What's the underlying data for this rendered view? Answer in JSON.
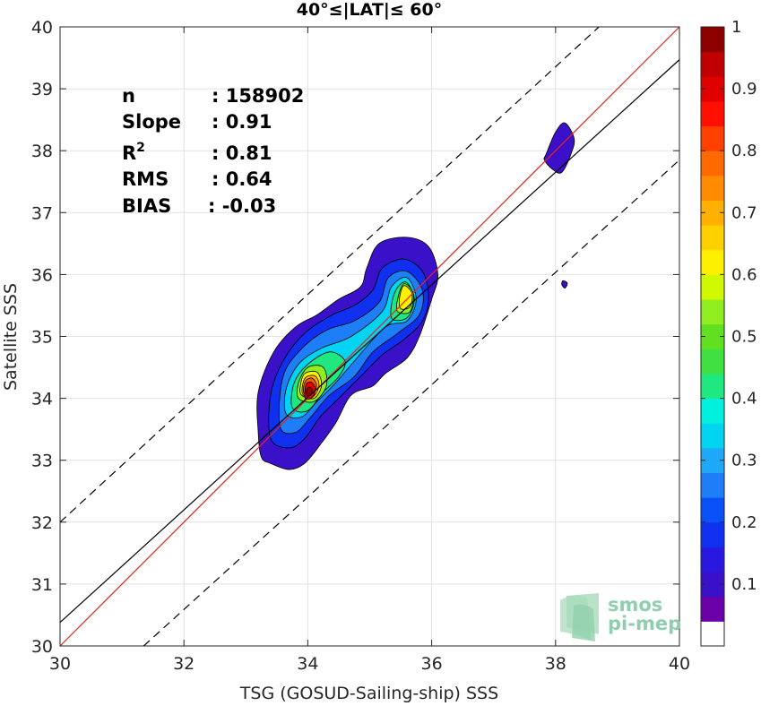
{
  "chart_data": {
    "type": "heatmap",
    "title": "40°≤|LAT|≤ 60°",
    "xlabel": "TSG (GOSUD-Sailing-ship) SSS",
    "ylabel": "Satellite SSS",
    "xlim": [
      30,
      40
    ],
    "ylim": [
      30,
      40
    ],
    "xticks": [
      "30",
      "32",
      "34",
      "36",
      "38",
      "40"
    ],
    "yticks": [
      "30",
      "31",
      "32",
      "33",
      "34",
      "35",
      "36",
      "37",
      "38",
      "39",
      "40"
    ],
    "grid": true,
    "stats": [
      {
        "label": "n",
        "value": ": 158902"
      },
      {
        "label": "Slope",
        "value": ": 0.91"
      },
      {
        "label": "R",
        "sup": "2",
        "value": ": 0.81"
      },
      {
        "label": "RMS",
        "value": ": 0.64"
      },
      {
        "label": "BIAS",
        "value": ": -0.03"
      }
    ],
    "lines": [
      {
        "role": "1:1",
        "color": "#e8231f",
        "dashed": false,
        "points": [
          [
            30,
            30
          ],
          [
            40,
            40
          ]
        ]
      },
      {
        "role": "fit",
        "color": "#000000",
        "dashed": false,
        "points": [
          [
            30,
            30.38
          ],
          [
            40,
            39.47
          ]
        ]
      },
      {
        "role": "upper",
        "color": "#000000",
        "dashed": true,
        "points": [
          [
            30,
            32
          ],
          [
            38.7,
            40
          ]
        ]
      },
      {
        "role": "lower",
        "color": "#000000",
        "dashed": true,
        "points": [
          [
            31.35,
            30
          ],
          [
            40,
            37.85
          ]
        ]
      }
    ],
    "contours": [
      {
        "level": 0.02,
        "color": "#3a10c8",
        "path": [
          [
            33.25,
            33.05
          ],
          [
            33.4,
            32.95
          ],
          [
            33.7,
            32.85
          ],
          [
            33.95,
            32.95
          ],
          [
            34.2,
            33.25
          ],
          [
            34.45,
            33.6
          ],
          [
            34.7,
            34.05
          ],
          [
            35.05,
            34.2
          ],
          [
            35.25,
            34.4
          ],
          [
            35.6,
            34.65
          ],
          [
            35.8,
            35.0
          ],
          [
            36.0,
            35.6
          ],
          [
            36.1,
            36.0
          ],
          [
            35.95,
            36.45
          ],
          [
            35.6,
            36.6
          ],
          [
            35.15,
            36.5
          ],
          [
            34.95,
            36.1
          ],
          [
            34.85,
            35.8
          ],
          [
            34.5,
            35.6
          ],
          [
            34.15,
            35.35
          ],
          [
            33.8,
            35.15
          ],
          [
            33.45,
            34.75
          ],
          [
            33.2,
            34.1
          ],
          [
            33.2,
            33.45
          ]
        ]
      },
      {
        "level": 0.02,
        "color": "#3a10c8",
        "path": [
          [
            37.85,
            37.95
          ],
          [
            38.0,
            38.3
          ],
          [
            38.15,
            38.45
          ],
          [
            38.3,
            38.2
          ],
          [
            38.25,
            37.95
          ],
          [
            38.1,
            37.65
          ],
          [
            37.95,
            37.7
          ],
          [
            37.82,
            37.85
          ]
        ]
      },
      {
        "level": 0.02,
        "color": "#3a10c8",
        "path": [
          [
            38.12,
            35.9
          ],
          [
            38.19,
            35.86
          ],
          [
            38.15,
            35.78
          ],
          [
            38.1,
            35.84
          ]
        ]
      },
      {
        "level": 0.15,
        "color": "#1030f0",
        "path": [
          [
            33.4,
            33.35
          ],
          [
            33.7,
            33.2
          ],
          [
            33.95,
            33.35
          ],
          [
            34.2,
            33.7
          ],
          [
            34.5,
            34.0
          ],
          [
            34.85,
            34.35
          ],
          [
            35.2,
            34.7
          ],
          [
            35.55,
            34.95
          ],
          [
            35.85,
            35.25
          ],
          [
            35.95,
            35.65
          ],
          [
            35.85,
            36.05
          ],
          [
            35.55,
            36.25
          ],
          [
            35.2,
            36.1
          ],
          [
            35.05,
            35.75
          ],
          [
            34.75,
            35.5
          ],
          [
            34.4,
            35.35
          ],
          [
            33.95,
            35.05
          ],
          [
            33.6,
            34.6
          ],
          [
            33.4,
            34.05
          ]
        ]
      },
      {
        "level": 0.25,
        "color": "#1e7ef8",
        "path": [
          [
            33.55,
            33.55
          ],
          [
            33.8,
            33.45
          ],
          [
            34.05,
            33.7
          ],
          [
            34.35,
            34.05
          ],
          [
            34.75,
            34.35
          ],
          [
            35.05,
            34.75
          ],
          [
            35.45,
            35.05
          ],
          [
            35.8,
            35.35
          ],
          [
            35.85,
            35.75
          ],
          [
            35.6,
            36.05
          ],
          [
            35.3,
            35.95
          ],
          [
            35.15,
            35.55
          ],
          [
            34.75,
            35.25
          ],
          [
            34.3,
            35.1
          ],
          [
            33.9,
            34.8
          ],
          [
            33.6,
            34.35
          ]
        ]
      },
      {
        "level": 0.35,
        "color": "#00d4f0",
        "path": [
          [
            33.65,
            33.75
          ],
          [
            33.9,
            33.7
          ],
          [
            34.15,
            33.95
          ],
          [
            34.45,
            34.25
          ],
          [
            34.75,
            34.6
          ],
          [
            35.25,
            35.15
          ],
          [
            35.6,
            35.25
          ],
          [
            35.75,
            35.6
          ],
          [
            35.6,
            35.95
          ],
          [
            35.35,
            35.8
          ],
          [
            35.2,
            35.4
          ],
          [
            34.7,
            35.0
          ],
          [
            34.2,
            34.8
          ],
          [
            33.85,
            34.55
          ],
          [
            33.65,
            34.15
          ]
        ]
      },
      {
        "level": 0.45,
        "color": "#20e880",
        "path": [
          [
            33.75,
            33.85
          ],
          [
            34.0,
            33.8
          ],
          [
            34.25,
            34.1
          ],
          [
            34.5,
            34.35
          ],
          [
            34.6,
            34.6
          ],
          [
            34.35,
            34.75
          ],
          [
            34.0,
            34.55
          ],
          [
            33.78,
            34.25
          ]
        ]
      },
      {
        "level": 0.45,
        "color": "#20e880",
        "path": [
          [
            35.35,
            35.3
          ],
          [
            35.6,
            35.3
          ],
          [
            35.72,
            35.6
          ],
          [
            35.58,
            35.88
          ],
          [
            35.4,
            35.7
          ]
        ]
      },
      {
        "level": 0.55,
        "color": "#90ee20",
        "path": [
          [
            33.85,
            34.0
          ],
          [
            34.1,
            33.95
          ],
          [
            34.3,
            34.2
          ],
          [
            34.25,
            34.5
          ],
          [
            34.0,
            34.5
          ],
          [
            33.85,
            34.25
          ]
        ]
      },
      {
        "level": 0.55,
        "color": "#90ee20",
        "path": [
          [
            35.45,
            35.4
          ],
          [
            35.65,
            35.4
          ],
          [
            35.7,
            35.7
          ],
          [
            35.55,
            35.85
          ],
          [
            35.45,
            35.6
          ]
        ]
      },
      {
        "level": 0.65,
        "color": "#fff000",
        "path": [
          [
            33.9,
            34.05
          ],
          [
            34.1,
            34.0
          ],
          [
            34.22,
            34.2
          ],
          [
            34.15,
            34.42
          ],
          [
            33.95,
            34.4
          ],
          [
            33.88,
            34.2
          ]
        ]
      },
      {
        "level": 0.65,
        "color": "#fff000",
        "path": [
          [
            35.5,
            35.45
          ],
          [
            35.65,
            35.48
          ],
          [
            35.68,
            35.7
          ],
          [
            35.55,
            35.82
          ],
          [
            35.48,
            35.62
          ]
        ]
      },
      {
        "level": 0.75,
        "color": "#ffb000",
        "path": [
          [
            33.93,
            34.05
          ],
          [
            34.08,
            34.02
          ],
          [
            34.18,
            34.2
          ],
          [
            34.12,
            34.36
          ],
          [
            33.97,
            34.34
          ],
          [
            33.91,
            34.18
          ]
        ]
      },
      {
        "level": 0.85,
        "color": "#ff5a00",
        "path": [
          [
            33.95,
            34.06
          ],
          [
            34.06,
            34.04
          ],
          [
            34.14,
            34.2
          ],
          [
            34.08,
            34.32
          ],
          [
            33.98,
            34.3
          ],
          [
            33.93,
            34.18
          ]
        ]
      },
      {
        "level": 0.9,
        "color": "#e00000",
        "path": [
          [
            33.96,
            34.0
          ],
          [
            34.08,
            34.02
          ],
          [
            34.12,
            34.16
          ],
          [
            34.06,
            34.26
          ],
          [
            33.97,
            34.22
          ]
        ]
      },
      {
        "level": 0.95,
        "color": "#9a0000",
        "path": [
          [
            33.99,
            34.04
          ],
          [
            34.05,
            34.06
          ],
          [
            34.07,
            34.15
          ],
          [
            34.01,
            34.18
          ],
          [
            33.98,
            34.12
          ]
        ]
      }
    ],
    "colorbar": {
      "range": [
        0,
        1
      ],
      "ticks": [
        "0.1",
        "0.2",
        "0.3",
        "0.4",
        "0.5",
        "0.6",
        "0.7",
        "0.8",
        "0.9",
        "1"
      ],
      "tick_values": [
        0.1,
        0.2,
        0.3,
        0.4,
        0.5,
        0.6,
        0.7,
        0.8,
        0.9,
        1.0
      ],
      "colors": [
        "#ffffff",
        "#6a00a8",
        "#3a10c8",
        "#2818e0",
        "#1030f0",
        "#0a50f8",
        "#1e7ef8",
        "#20a8f8",
        "#00d4f0",
        "#00f0e0",
        "#20e880",
        "#40e040",
        "#60e020",
        "#90ee20",
        "#d0f800",
        "#fff000",
        "#ffd000",
        "#ffb000",
        "#ff8c00",
        "#ff6a00",
        "#ff4000",
        "#ff1000",
        "#e00000",
        "#c00000",
        "#8c0000"
      ]
    }
  },
  "logo": {
    "line1": "smos",
    "line2": "pi-mep"
  }
}
